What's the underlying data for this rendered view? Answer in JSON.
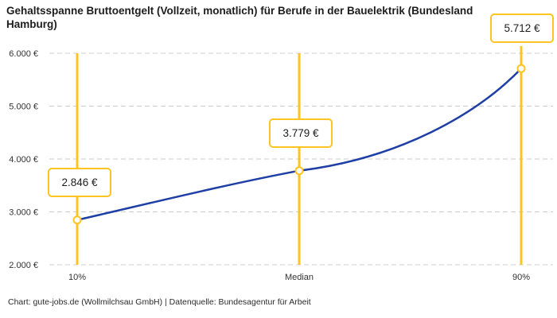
{
  "title": "Gehaltsspanne Bruttoentgelt (Vollzeit, monatlich) für Berufe in der Bauelektrik (Bundesland Hamburg)",
  "footer": "Chart: gute-jobs.de (Wollmilchsau GmbH) | Datenquelle: Bundesagentur für Arbeit",
  "chart_data": {
    "type": "line",
    "title": "Gehaltsspanne Bruttoentgelt (Vollzeit, monatlich) für Berufe in der Bauelektrik (Bundesland Hamburg)",
    "categories": [
      "10%",
      "Median",
      "90%"
    ],
    "values": [
      2846,
      3779,
      5712
    ],
    "points": [
      {
        "label": "10%",
        "value": 2846,
        "value_label": "2.846 €"
      },
      {
        "label": "Median",
        "value": 3779,
        "value_label": "3.779 €"
      },
      {
        "label": "90%",
        "value": 5712,
        "value_label": "5.712 €"
      }
    ],
    "y_ticks": [
      {
        "value": 6000,
        "label": "6.000 €"
      },
      {
        "value": 5000,
        "label": "5.000 €"
      },
      {
        "value": 4000,
        "label": "4.000 €"
      },
      {
        "value": 3000,
        "label": "3.000 €"
      },
      {
        "value": 2000,
        "label": "2.000 €"
      }
    ],
    "ylim": [
      2000,
      6000
    ],
    "xlabel": "",
    "ylabel": "",
    "grid": "horizontal-dashed",
    "legend": "none",
    "annotations": [
      "2.846 €",
      "3.779 €",
      "5.712 €"
    ],
    "colors": {
      "curve": "#1e3fa5",
      "accent": "#ffc421",
      "grid": "#cccccc",
      "text": "#1d1d1d",
      "axis_text": "#333333"
    }
  }
}
